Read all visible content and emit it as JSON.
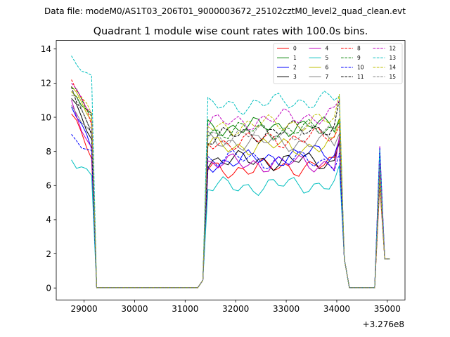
{
  "suptitle": "Data file: modeM0/AS1T03_206T01_9000003672_25102cztM0_level2_quad_clean.evt",
  "chart_data": {
    "type": "line",
    "title": "Quadrant 1 module wise count rates with 100.0s bins.",
    "xlabel": "",
    "ylabel": "",
    "x_offset_label": "+3.276e8",
    "xlim": [
      28450,
      35350
    ],
    "ylim": [
      -0.7,
      14.5
    ],
    "xticks": [
      29000,
      30000,
      31000,
      32000,
      33000,
      34000,
      35000
    ],
    "xtick_labels": [
      "29000",
      "30000",
      "31000",
      "32000",
      "33000",
      "34000",
      "35000"
    ],
    "yticks": [
      0,
      2,
      4,
      6,
      8,
      10,
      12,
      14
    ],
    "ytick_labels": [
      "0",
      "2",
      "4",
      "6",
      "8",
      "10",
      "12",
      "14"
    ],
    "grid": false,
    "legend_position": "top-right",
    "series": [
      {
        "name": "0",
        "color": "#ff0000",
        "dashed": false,
        "a": 10.2,
        "b": 7.6,
        "c": 6.9,
        "d": 7.2,
        "e": 8.8,
        "f": 6.0
      },
      {
        "name": "1",
        "color": "#008000",
        "dashed": false,
        "a": 11.5,
        "b": 10.0,
        "c": 9.4,
        "d": 9.5,
        "e": 10.3,
        "f": 7.5
      },
      {
        "name": "2",
        "color": "#0000ff",
        "dashed": false,
        "a": 10.6,
        "b": 8.3,
        "c": 7.3,
        "d": 8.0,
        "e": 8.6,
        "f": 6.8
      },
      {
        "name": "3",
        "color": "#000000",
        "dashed": false,
        "a": 11.1,
        "b": 9.0,
        "c": 7.5,
        "d": 7.4,
        "e": 8.8,
        "f": 6.4
      },
      {
        "name": "4",
        "color": "#bf00bf",
        "dashed": false,
        "a": 11.0,
        "b": 8.1,
        "c": 7.3,
        "d": 7.3,
        "e": 9.0,
        "f": 8.3
      },
      {
        "name": "5",
        "color": "#00bfbf",
        "dashed": false,
        "a": 7.5,
        "b": 6.6,
        "c": 5.9,
        "d": 6.1,
        "e": 6.6,
        "f": 7.6
      },
      {
        "name": "6",
        "color": "#bfbf00",
        "dashed": false,
        "a": 11.8,
        "b": 9.8,
        "c": 8.3,
        "d": 8.3,
        "e": 9.8,
        "f": 7.0
      },
      {
        "name": "7",
        "color": "#808080",
        "dashed": false,
        "a": 10.7,
        "b": 8.8,
        "c": 8.6,
        "d": 8.5,
        "e": 9.2,
        "f": 6.2
      },
      {
        "name": "8",
        "color": "#ff0000",
        "dashed": true,
        "a": 12.2,
        "b": 9.6,
        "c": 8.5,
        "d": 8.9,
        "e": 9.3,
        "f": 6.9
      },
      {
        "name": "9",
        "color": "#008000",
        "dashed": true,
        "a": 11.7,
        "b": 10.3,
        "c": 9.2,
        "d": 9.3,
        "e": 10.1,
        "f": 7.2
      },
      {
        "name": "10",
        "color": "#0000ff",
        "dashed": true,
        "a": 9.0,
        "b": 8.0,
        "c": 7.6,
        "d": 7.4,
        "e": 8.2,
        "f": 8.2
      },
      {
        "name": "11",
        "color": "#000000",
        "dashed": true,
        "a": 11.8,
        "b": 9.1,
        "c": 8.8,
        "d": 9.5,
        "e": 10.6,
        "f": 6.6
      },
      {
        "name": "12",
        "color": "#bf00bf",
        "dashed": true,
        "a": 12.0,
        "b": 10.3,
        "c": 9.6,
        "d": 10.2,
        "e": 10.9,
        "f": 7.4
      },
      {
        "name": "13",
        "color": "#00bfbf",
        "dashed": true,
        "a": 13.6,
        "b": 12.1,
        "c": 10.6,
        "d": 11.1,
        "e": 11.2,
        "f": 8.1
      },
      {
        "name": "14",
        "color": "#bfbf00",
        "dashed": true,
        "a": 11.5,
        "b": 10.2,
        "c": 9.4,
        "d": 9.8,
        "e": 11.0,
        "f": 6.4
      },
      {
        "name": "15",
        "color": "#808080",
        "dashed": true,
        "a": 11.3,
        "b": 9.4,
        "c": 8.9,
        "d": 9.2,
        "e": 10.0,
        "f": 7.0
      }
    ]
  }
}
